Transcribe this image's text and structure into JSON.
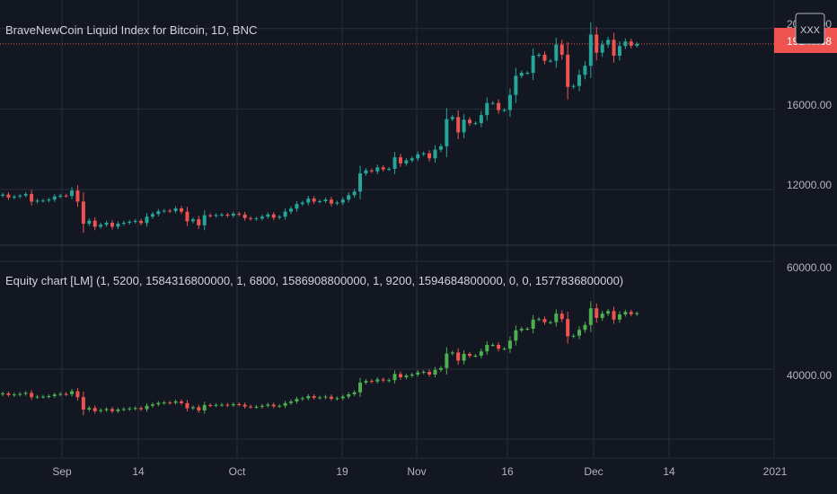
{
  "colors": {
    "background": "#131722",
    "grid": "#2a2e39",
    "axis_text": "#b2b5be",
    "up": "#26a69a",
    "down": "#ef5350",
    "equity_up": "#4caf50",
    "equity_down": "#ef5350",
    "price_line": "#ef5350",
    "title": "#d1d4dc"
  },
  "top_pane": {
    "title": "BraveNewCoin Liquid Index for Bitcoin, 1D, BNC",
    "y_tick_labels": [
      "20000.00",
      "16000.00",
      "12000.00"
    ],
    "current_price_label": "19240.38",
    "badge_text": "XXX"
  },
  "bottom_pane": {
    "title": "Equity chart [LM] (1, 5200, 1584316800000, 1, 6800, 1586908800000, 1, 9200, 1594684800000, 0, 0, 1577836800000)",
    "y_tick_labels": [
      "60000.00",
      "40000.00"
    ]
  },
  "x_axis_labels": [
    "Sep",
    "14",
    "Oct",
    "19",
    "Nov",
    "16",
    "Dec",
    "14",
    "2021"
  ],
  "chart_data": [
    {
      "type": "candlestick",
      "title": "BraveNewCoin Liquid Index for Bitcoin, 1D, BNC",
      "x": [
        "2020-08-20",
        "2020-08-21",
        "2020-08-22",
        "2020-08-23",
        "2020-08-24",
        "2020-08-25",
        "2020-08-26",
        "2020-08-27",
        "2020-08-28",
        "2020-08-29",
        "2020-08-30",
        "2020-08-31",
        "2020-09-01",
        "2020-09-02",
        "2020-09-03",
        "2020-09-04",
        "2020-09-05",
        "2020-09-06",
        "2020-09-07",
        "2020-09-08",
        "2020-09-09",
        "2020-09-10",
        "2020-09-11",
        "2020-09-12",
        "2020-09-13",
        "2020-09-14",
        "2020-09-15",
        "2020-09-16",
        "2020-09-17",
        "2020-09-18",
        "2020-09-19",
        "2020-09-20",
        "2020-09-21",
        "2020-09-22",
        "2020-09-23",
        "2020-09-24",
        "2020-09-25",
        "2020-09-26",
        "2020-09-27",
        "2020-09-28",
        "2020-09-29",
        "2020-09-30",
        "2020-10-01",
        "2020-10-02",
        "2020-10-03",
        "2020-10-04",
        "2020-10-05",
        "2020-10-06",
        "2020-10-07",
        "2020-10-08",
        "2020-10-09",
        "2020-10-10",
        "2020-10-11",
        "2020-10-12",
        "2020-10-13",
        "2020-10-14",
        "2020-10-15",
        "2020-10-16",
        "2020-10-17",
        "2020-10-18",
        "2020-10-19",
        "2020-10-20",
        "2020-10-21",
        "2020-10-22",
        "2020-10-23",
        "2020-10-24",
        "2020-10-25",
        "2020-10-26",
        "2020-10-27",
        "2020-10-28",
        "2020-10-29",
        "2020-10-30",
        "2020-10-31",
        "2020-11-01",
        "2020-11-02",
        "2020-11-03",
        "2020-11-04",
        "2020-11-05",
        "2020-11-06",
        "2020-11-07",
        "2020-11-08",
        "2020-11-09",
        "2020-11-10",
        "2020-11-11",
        "2020-11-12",
        "2020-11-13",
        "2020-11-14",
        "2020-11-15",
        "2020-11-16",
        "2020-11-17",
        "2020-11-18",
        "2020-11-19",
        "2020-11-20",
        "2020-11-21",
        "2020-11-22",
        "2020-11-23",
        "2020-11-24",
        "2020-11-25",
        "2020-11-26",
        "2020-11-27",
        "2020-11-28",
        "2020-11-29",
        "2020-11-30",
        "2020-12-01",
        "2020-12-02",
        "2020-12-03",
        "2020-12-04",
        "2020-12-05",
        "2020-12-06",
        "2020-12-07",
        "2020-12-08"
      ],
      "close": [
        11750,
        11600,
        11650,
        11700,
        11780,
        11400,
        11450,
        11450,
        11500,
        11650,
        11700,
        11680,
        11950,
        11400,
        10300,
        10450,
        10150,
        10250,
        10350,
        10150,
        10300,
        10350,
        10400,
        10440,
        10330,
        10650,
        10780,
        10920,
        10950,
        10930,
        11060,
        10900,
        10420,
        10520,
        10220,
        10720,
        10690,
        10730,
        10750,
        10700,
        10800,
        10760,
        10580,
        10540,
        10560,
        10650,
        10760,
        10600,
        10650,
        10900,
        11050,
        11280,
        11350,
        11550,
        11400,
        11420,
        11500,
        11300,
        11350,
        11500,
        11720,
        11900,
        12800,
        12950,
        12900,
        13100,
        13000,
        13030,
        13600,
        13300,
        13450,
        13550,
        13750,
        13800,
        13550,
        13980,
        14150,
        15500,
        15600,
        14840,
        15470,
        15290,
        15300,
        15700,
        16300,
        16300,
        15950,
        15950,
        16700,
        17650,
        17800,
        17800,
        18650,
        18700,
        18400,
        18400,
        19200,
        18700,
        17100,
        17150,
        17700,
        18150,
        19700,
        18800,
        19200,
        19440,
        18650,
        19130,
        19360,
        19150,
        19240
      ],
      "y_ticks": [
        12000,
        16000,
        20000
      ]
    },
    {
      "type": "candlestick",
      "title": "Equity chart [LM] (1, 5200, 1584316800000, 1, 6800, 1586908800000, 1, 9200, 1594684800000, 0, 0, 1577836800000)",
      "x": [
        "2020-08-20",
        "2020-08-21",
        "2020-08-22",
        "2020-08-23",
        "2020-08-24",
        "2020-08-25",
        "2020-08-26",
        "2020-08-27",
        "2020-08-28",
        "2020-08-29",
        "2020-08-30",
        "2020-08-31",
        "2020-09-01",
        "2020-09-02",
        "2020-09-03",
        "2020-09-04",
        "2020-09-05",
        "2020-09-06",
        "2020-09-07",
        "2020-09-08",
        "2020-09-09",
        "2020-09-10",
        "2020-09-11",
        "2020-09-12",
        "2020-09-13",
        "2020-09-14",
        "2020-09-15",
        "2020-09-16",
        "2020-09-17",
        "2020-09-18",
        "2020-09-19",
        "2020-09-20",
        "2020-09-21",
        "2020-09-22",
        "2020-09-23",
        "2020-09-24",
        "2020-09-25",
        "2020-09-26",
        "2020-09-27",
        "2020-09-28",
        "2020-09-29",
        "2020-09-30",
        "2020-10-01",
        "2020-10-02",
        "2020-10-03",
        "2020-10-04",
        "2020-10-05",
        "2020-10-06",
        "2020-10-07",
        "2020-10-08",
        "2020-10-09",
        "2020-10-10",
        "2020-10-11",
        "2020-10-12",
        "2020-10-13",
        "2020-10-14",
        "2020-10-15",
        "2020-10-16",
        "2020-10-17",
        "2020-10-18",
        "2020-10-19",
        "2020-10-20",
        "2020-10-21",
        "2020-10-22",
        "2020-10-23",
        "2020-10-24",
        "2020-10-25",
        "2020-10-26",
        "2020-10-27",
        "2020-10-28",
        "2020-10-29",
        "2020-10-30",
        "2020-10-31",
        "2020-11-01",
        "2020-11-02",
        "2020-11-03",
        "2020-11-04",
        "2020-11-05",
        "2020-11-06",
        "2020-11-07",
        "2020-11-08",
        "2020-11-09",
        "2020-11-10",
        "2020-11-11",
        "2020-11-12",
        "2020-11-13",
        "2020-11-14",
        "2020-11-15",
        "2020-11-16",
        "2020-11-17",
        "2020-11-18",
        "2020-11-19",
        "2020-11-20",
        "2020-11-21",
        "2020-11-22",
        "2020-11-23",
        "2020-11-24",
        "2020-11-25",
        "2020-11-26",
        "2020-11-27",
        "2020-11-28",
        "2020-11-29",
        "2020-11-30",
        "2020-12-01",
        "2020-12-02",
        "2020-12-03",
        "2020-12-04",
        "2020-12-05",
        "2020-12-06",
        "2020-12-07",
        "2020-12-08"
      ],
      "close": [
        35500,
        35200,
        35300,
        35400,
        35600,
        34800,
        34900,
        34900,
        35000,
        35300,
        35400,
        35360,
        35900,
        34800,
        32500,
        32800,
        32200,
        32400,
        32600,
        32200,
        32500,
        32600,
        32700,
        32780,
        32560,
        33200,
        33460,
        33740,
        33800,
        33760,
        34020,
        33700,
        32740,
        32940,
        32340,
        33340,
        33280,
        33360,
        33400,
        33300,
        33500,
        33420,
        33060,
        32980,
        33020,
        33200,
        33420,
        33100,
        33200,
        33700,
        34000,
        34460,
        34600,
        35000,
        34700,
        34740,
        34900,
        34500,
        34600,
        34900,
        35340,
        35700,
        37500,
        37800,
        37700,
        38100,
        37900,
        37960,
        39100,
        38500,
        38800,
        39000,
        39400,
        39500,
        39000,
        39860,
        40200,
        42900,
        43100,
        41580,
        42840,
        42480,
        42500,
        43300,
        44500,
        44500,
        43800,
        43800,
        45300,
        47200,
        47500,
        47500,
        49200,
        49300,
        48700,
        48700,
        50300,
        49300,
        46100,
        46200,
        47300,
        48200,
        51300,
        49500,
        50300,
        50780,
        49200,
        50160,
        50620,
        50200,
        50380
      ],
      "y_ticks": [
        40000,
        60000
      ]
    }
  ]
}
